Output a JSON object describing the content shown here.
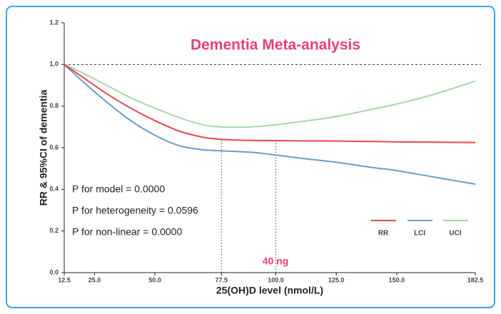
{
  "chart_data": {
    "type": "line",
    "title": "Dementia Meta-analysis",
    "x_label": "25(OH)D level (nmol/L)",
    "y_label": "RR & 95%CI of dementia",
    "x": [
      12.5,
      20,
      30,
      40,
      50,
      60,
      70,
      77.5,
      90,
      100,
      110,
      125,
      140,
      150,
      165,
      182.5
    ],
    "series": [
      {
        "name": "RR",
        "color": "#e8474c",
        "values": [
          1.0,
          0.94,
          0.86,
          0.79,
          0.73,
          0.68,
          0.65,
          0.64,
          0.635,
          0.634,
          0.633,
          0.632,
          0.63,
          0.628,
          0.627,
          0.625
        ]
      },
      {
        "name": "LCI",
        "color": "#6a9dc8",
        "values": [
          1.0,
          0.92,
          0.82,
          0.73,
          0.66,
          0.61,
          0.59,
          0.585,
          0.578,
          0.565,
          0.55,
          0.53,
          0.505,
          0.49,
          0.46,
          0.425
        ]
      },
      {
        "name": "UCI",
        "color": "#a9d6a9",
        "values": [
          1.0,
          0.96,
          0.9,
          0.84,
          0.79,
          0.745,
          0.71,
          0.7,
          0.7,
          0.71,
          0.725,
          0.75,
          0.785,
          0.81,
          0.855,
          0.92
        ]
      }
    ],
    "xlim": [
      12.5,
      182.5
    ],
    "xticks": [
      12.5,
      {
        "value": 25,
        "label": "25.0"
      },
      {
        "value": 50,
        "label": "50.0"
      },
      77.5,
      {
        "value": 100,
        "label": "100.0"
      },
      {
        "value": 125,
        "label": "125.0"
      },
      {
        "value": 150,
        "label": "150.0"
      },
      182.5
    ],
    "ylim": [
      0,
      1.2
    ],
    "yticks": [
      {
        "value": 0,
        "label": "0.0"
      },
      0.2,
      0.4,
      0.6,
      0.8,
      {
        "value": 1,
        "label": "1.0"
      },
      1.2
    ],
    "reference_y": 1,
    "reference_x": [
      77.5,
      100
    ],
    "annotations": [
      "P for model = 0.0000",
      "P for heterogeneity = 0.0596",
      "P for non-linear = 0.0000",
      "40 ng"
    ],
    "legend": "lower right"
  }
}
